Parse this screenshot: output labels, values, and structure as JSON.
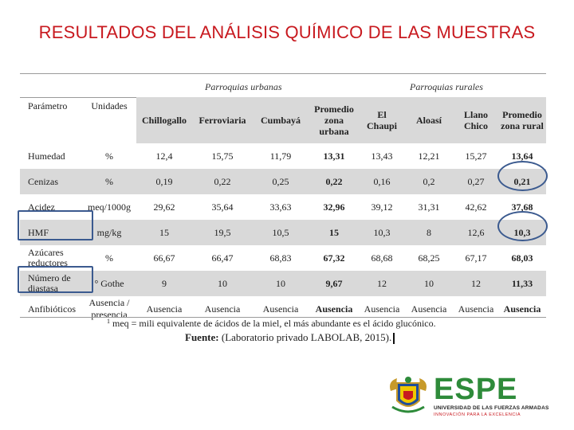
{
  "slide": {
    "title": "RESULTADOS DEL ANÁLISIS QUÍMICO DE LAS MUESTRAS"
  },
  "table": {
    "group_urban": "Parroquias urbanas",
    "group_rural": "Parroquias rurales",
    "headers": {
      "parametro": "Parámetro",
      "unidades": "Unidades",
      "chillogallo": "Chillogallo",
      "ferroviaria": "Ferroviaria",
      "cumbaya": "Cumbayá",
      "promedio_urbana": "Promedio zona urbana",
      "el_chaupi": "El Chaupi",
      "aloasi": "Aloasí",
      "llano_chico": "Llano Chico",
      "promedio_rural": "Promedio zona rural"
    },
    "rows": [
      {
        "param": "Humedad",
        "unit": "%",
        "v": [
          "12,4",
          "15,75",
          "11,79",
          "13,31",
          "13,43",
          "12,21",
          "15,27",
          "13,64"
        ]
      },
      {
        "param": "Cenizas",
        "unit": "%",
        "v": [
          "0,19",
          "0,22",
          "0,25",
          "0,22",
          "0,16",
          "0,2",
          "0,27",
          "0,21"
        ]
      },
      {
        "param": "Acidez",
        "unit": "meq/1000g",
        "v": [
          "29,62",
          "35,64",
          "33,63",
          "32,96",
          "39,12",
          "31,31",
          "42,62",
          "37,68"
        ]
      },
      {
        "param": "HMF",
        "unit": "mg/kg",
        "v": [
          "15",
          "19,5",
          "10,5",
          "15",
          "10,3",
          "8",
          "12,6",
          "10,3"
        ]
      },
      {
        "param": "Azúcares reductores",
        "unit": "%",
        "v": [
          "66,67",
          "66,47",
          "68,83",
          "67,32",
          "68,68",
          "68,25",
          "67,17",
          "68,03"
        ]
      },
      {
        "param": "Número de diastasa",
        "unit": "° Gothe",
        "v": [
          "9",
          "10",
          "10",
          "9,67",
          "12",
          "10",
          "12",
          "11,33"
        ]
      },
      {
        "param": "Anfibióticos",
        "unit": "Ausencia / presencia",
        "v": [
          "Ausencia",
          "Ausencia",
          "Ausencia",
          "Ausencia",
          "Ausencia",
          "Ausencia",
          "Ausencia",
          "Ausencia"
        ]
      }
    ]
  },
  "footnote": {
    "mark": "1",
    "text": "meq = mili equivalente de ácidos de la miel, el más abundante es el ácido glucónico."
  },
  "source": {
    "label": "Fuente:",
    "text": "(Laboratorio privado LABOLAB, 2015)."
  },
  "logo": {
    "wordmark": "ESPE",
    "subtitle": "UNIVERSIDAD DE LAS FUERZAS ARMADAS",
    "tagline": "INNOVACIÓN PARA LA EXCELENCIA"
  },
  "colors": {
    "title": "#c8191f",
    "band": "#d9d9d9",
    "annotation": "#3b5a8f",
    "brand_green": "#2e8b3a"
  }
}
